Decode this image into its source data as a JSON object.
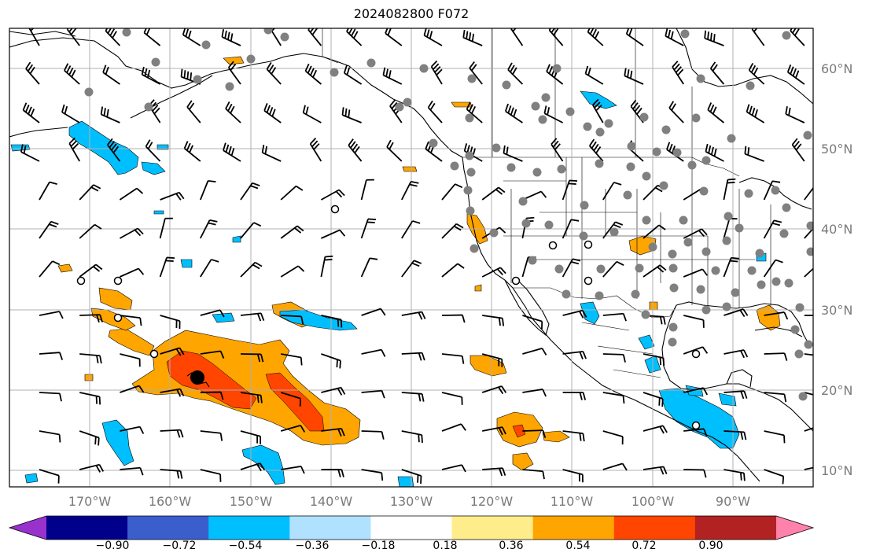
{
  "title": "2024082800 F072",
  "lat_labels": [
    "60°N",
    "50°N",
    "40°N",
    "30°N",
    "20°N",
    "10°N"
  ],
  "lon_labels": [
    "170°W",
    "160°W",
    "150°W",
    "140°W",
    "130°W",
    "120°W",
    "110°W",
    "100°W",
    "90°W"
  ],
  "colorbar": {
    "colors": [
      "#9932cc",
      "#00008b",
      "#3a5fcd",
      "#00bfff",
      "#b0e2ff",
      "#ffffff",
      "#ffec8b",
      "#ffa500",
      "#ff4500",
      "#b22222",
      "#ff82ab"
    ],
    "tick_labels": [
      "−0.90",
      "−0.72",
      "−0.54",
      "−0.36",
      "−0.18",
      "0.18",
      "0.36",
      "0.54",
      "0.72",
      "0.90"
    ]
  },
  "map": {
    "lat_range": [
      8,
      65
    ],
    "lon_range": [
      -180,
      -80
    ],
    "grid": true
  }
}
